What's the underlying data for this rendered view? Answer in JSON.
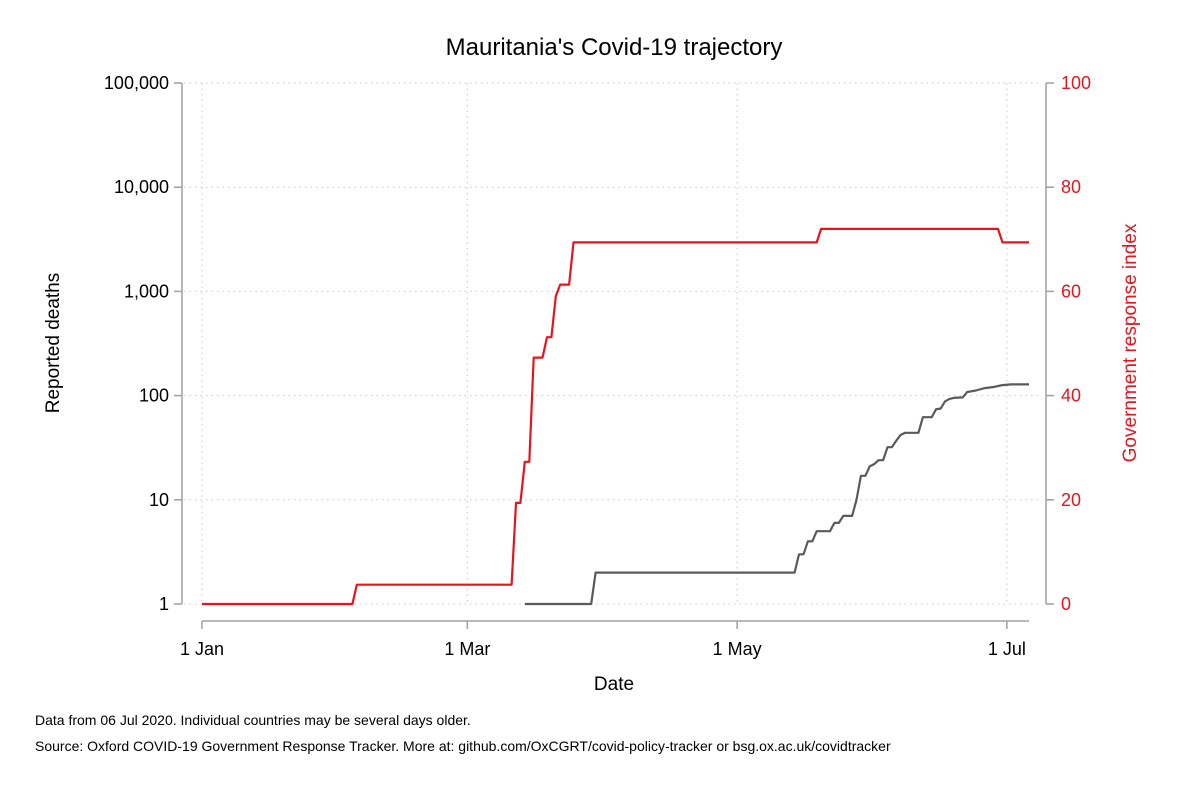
{
  "chart_data": {
    "type": "line",
    "title": "Mauritania's Covid-19 trajectory",
    "xlabel": "Date",
    "ylabel_left": "Reported deaths",
    "ylabel_right": "Government response index",
    "x_ticks": [
      "1 Jan",
      "1 Mar",
      "1 May",
      "1 Jul"
    ],
    "x_tick_dates": [
      "2020-01-01",
      "2020-03-01",
      "2020-05-01",
      "2020-07-01"
    ],
    "xlim": [
      "2020-01-01",
      "2020-07-06"
    ],
    "y_left_scale": "log",
    "y_left_ticks": [
      "1",
      "10",
      "100",
      "1,000",
      "10,000",
      "100,000"
    ],
    "y_left_tick_values": [
      1,
      10,
      100,
      1000,
      10000,
      100000
    ],
    "ylim_left": [
      1,
      100000
    ],
    "y_right_ticks": [
      "0",
      "20",
      "40",
      "60",
      "80",
      "100"
    ],
    "y_right_tick_values": [
      0,
      20,
      40,
      60,
      80,
      100
    ],
    "ylim_right": [
      0,
      100
    ],
    "grid": true,
    "colors": {
      "deaths": "#5a5a5a",
      "response": "#e8141c",
      "axis": "#a0a0a0",
      "grid": "#c8c8c8"
    },
    "series": [
      {
        "axis": "left",
        "color": "#5a5a5a",
        "points": [
          [
            "2020-03-14",
            1
          ],
          [
            "2020-03-29",
            1
          ],
          [
            "2020-03-30",
            2
          ],
          [
            "2020-05-14",
            2
          ],
          [
            "2020-05-15",
            3
          ],
          [
            "2020-05-16",
            3
          ],
          [
            "2020-05-17",
            4
          ],
          [
            "2020-05-18",
            4
          ],
          [
            "2020-05-19",
            5
          ],
          [
            "2020-05-22",
            5
          ],
          [
            "2020-05-23",
            6
          ],
          [
            "2020-05-24",
            6
          ],
          [
            "2020-05-25",
            7
          ],
          [
            "2020-05-27",
            7
          ],
          [
            "2020-05-28",
            10
          ],
          [
            "2020-05-29",
            17
          ],
          [
            "2020-05-30",
            17
          ],
          [
            "2020-05-31",
            21
          ],
          [
            "2020-06-01",
            22
          ],
          [
            "2020-06-02",
            24
          ],
          [
            "2020-06-03",
            24
          ],
          [
            "2020-06-04",
            32
          ],
          [
            "2020-06-05",
            32
          ],
          [
            "2020-06-06",
            37
          ],
          [
            "2020-06-07",
            42
          ],
          [
            "2020-06-08",
            44
          ],
          [
            "2020-06-11",
            44
          ],
          [
            "2020-06-12",
            62
          ],
          [
            "2020-06-14",
            62
          ],
          [
            "2020-06-15",
            74
          ],
          [
            "2020-06-16",
            75
          ],
          [
            "2020-06-17",
            88
          ],
          [
            "2020-06-18",
            93
          ],
          [
            "2020-06-19",
            95
          ],
          [
            "2020-06-21",
            96
          ],
          [
            "2020-06-22",
            108
          ],
          [
            "2020-06-24",
            112
          ],
          [
            "2020-06-26",
            118
          ],
          [
            "2020-06-28",
            121
          ],
          [
            "2020-06-30",
            126
          ],
          [
            "2020-07-02",
            128
          ],
          [
            "2020-07-04",
            128
          ],
          [
            "2020-07-06",
            128
          ]
        ]
      },
      {
        "axis": "right",
        "color": "#e8141c",
        "points": [
          [
            "2020-01-01",
            0
          ],
          [
            "2020-02-04",
            0
          ],
          [
            "2020-02-05",
            3.7
          ],
          [
            "2020-03-11",
            3.7
          ],
          [
            "2020-03-12",
            19.4
          ],
          [
            "2020-03-13",
            19.4
          ],
          [
            "2020-03-14",
            27.3
          ],
          [
            "2020-03-15",
            27.3
          ],
          [
            "2020-03-16",
            47.3
          ],
          [
            "2020-03-18",
            47.3
          ],
          [
            "2020-03-19",
            51.2
          ],
          [
            "2020-03-20",
            51.2
          ],
          [
            "2020-03-21",
            59.1
          ],
          [
            "2020-03-22",
            61.3
          ],
          [
            "2020-03-24",
            61.3
          ],
          [
            "2020-03-25",
            69.4
          ],
          [
            "2020-05-19",
            69.4
          ],
          [
            "2020-05-20",
            72.0
          ],
          [
            "2020-06-29",
            72.0
          ],
          [
            "2020-06-30",
            69.4
          ],
          [
            "2020-07-06",
            69.4
          ]
        ]
      }
    ]
  },
  "notes": {
    "data_date": "Data from 06 Jul 2020. Individual countries may be several days older.",
    "source": "Source: Oxford COVID-19 Government Response Tracker. More at: github.com/OxCGRT/covid-policy-tracker or bsg.ox.ac.uk/covidtracker"
  }
}
